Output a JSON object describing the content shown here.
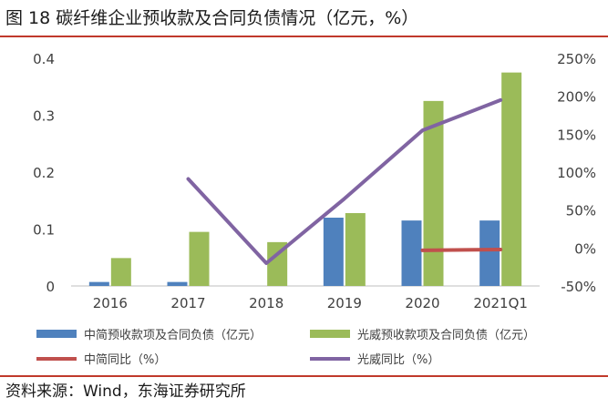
{
  "header": {
    "title": "图 18 碳纤维企业预收款及合同负债情况（亿元，%）"
  },
  "footer": {
    "source": "资料来源：Wind，东海证券研究所"
  },
  "chart_data": {
    "type": "bar",
    "categories": [
      "2016",
      "2017",
      "2018",
      "2019",
      "2020",
      "2021Q1"
    ],
    "y_left": {
      "ticks": [
        "0",
        "0.1",
        "0.2",
        "0.3",
        "0.4"
      ],
      "ylim": [
        0,
        0.4
      ]
    },
    "y_right": {
      "ticks": [
        "250%",
        "200%",
        "150%",
        "100%",
        "50%",
        "0%",
        "-50%"
      ],
      "ylim": [
        -50,
        250
      ]
    },
    "grid": false,
    "legend_position": "bottom",
    "series": [
      {
        "name": "中简预收款项及合同负债（亿元）",
        "kind": "bar",
        "axis": "left",
        "color": "#4f81bd",
        "values": [
          0.007,
          0.007,
          null,
          0.12,
          0.115,
          0.115
        ]
      },
      {
        "name": "光威预收款项及合同负债（亿元）",
        "kind": "bar",
        "axis": "left",
        "color": "#9bbb59",
        "values": [
          0.049,
          0.095,
          0.077,
          0.128,
          0.325,
          0.375
        ]
      },
      {
        "name": "中简同比（%）",
        "kind": "line",
        "axis": "right",
        "color": "#c0504d",
        "values": [
          null,
          null,
          null,
          null,
          -3,
          -2
        ]
      },
      {
        "name": "光威同比（%）",
        "kind": "line",
        "axis": "right",
        "color": "#8064a2",
        "values": [
          null,
          91,
          -20,
          65,
          155,
          195
        ]
      }
    ]
  }
}
